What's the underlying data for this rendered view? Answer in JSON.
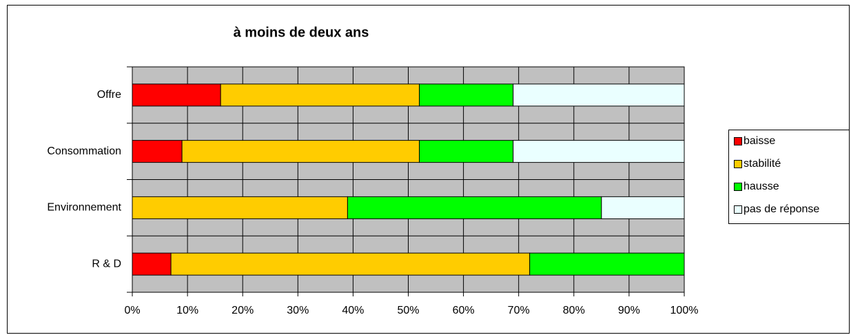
{
  "chart_data": {
    "type": "stacked-bar-horizontal",
    "title": "à moins de deux ans",
    "categories": [
      "Offre",
      "Consommation",
      "Environnement",
      "R & D"
    ],
    "series": [
      {
        "name": "baisse",
        "color": "#ff0000",
        "values": [
          16,
          9,
          0,
          7
        ]
      },
      {
        "name": "stabilité",
        "color": "#ffcc00",
        "values": [
          36,
          43,
          39,
          65
        ]
      },
      {
        "name": "hausse",
        "color": "#00ff00",
        "values": [
          17,
          17,
          46,
          28
        ]
      },
      {
        "name": "pas de réponse",
        "color": "#eaffff",
        "values": [
          31,
          31,
          15,
          0
        ]
      }
    ],
    "xlim": [
      0,
      100
    ],
    "xticks": [
      {
        "value": 0,
        "label": "0%"
      },
      {
        "value": 10,
        "label": "10%"
      },
      {
        "value": 20,
        "label": "20%"
      },
      {
        "value": 30,
        "label": "30%"
      },
      {
        "value": 40,
        "label": "40%"
      },
      {
        "value": 50,
        "label": "50%"
      },
      {
        "value": 60,
        "label": "60%"
      },
      {
        "value": 70,
        "label": "70%"
      },
      {
        "value": 80,
        "label": "80%"
      },
      {
        "value": 90,
        "label": "90%"
      },
      {
        "value": 100,
        "label": "100%"
      }
    ],
    "grid": true,
    "legend": "right"
  }
}
